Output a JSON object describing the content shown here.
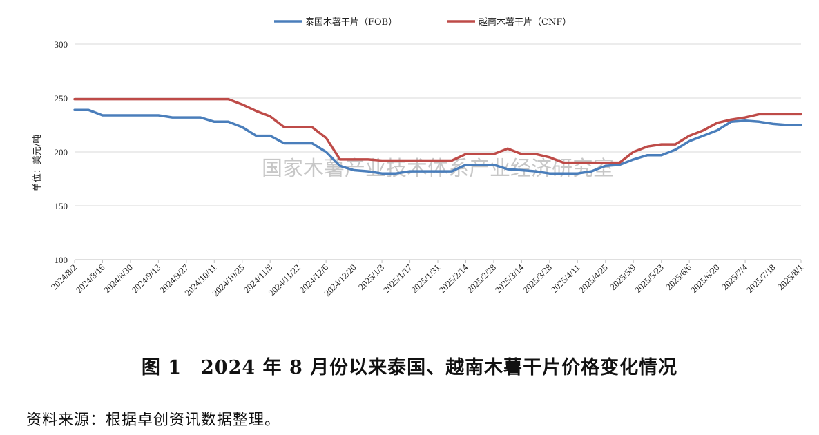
{
  "chart_data": {
    "type": "line",
    "title": "",
    "xlabel": "",
    "ylabel": "单位：美元/吨",
    "ylim": [
      100,
      300
    ],
    "yticks": [
      100,
      150,
      200,
      250,
      300
    ],
    "grid": true,
    "legend_position": "top-center",
    "watermark": "国家木薯产业技术体系产业经济研究室",
    "x_tick_labels": [
      "2024/8/2",
      "2024/8/16",
      "2024/8/30",
      "2024/9/13",
      "2024/9/27",
      "2024/10/11",
      "2024/10/25",
      "2024/11/8",
      "2024/11/22",
      "2024/12/6",
      "2024/12/20",
      "2025/1/3",
      "2025/1/17",
      "2025/1/31",
      "2025/2/14",
      "2025/2/28",
      "2025/3/14",
      "2025/3/28",
      "2025/4/11",
      "2025/4/25",
      "2025/5/9",
      "2025/5/23",
      "2025/6/6",
      "2025/6/20",
      "2025/7/4",
      "2025/7/18",
      "2025/8/1"
    ],
    "x": [
      "2024/8/2",
      "2024/8/9",
      "2024/8/16",
      "2024/8/23",
      "2024/8/30",
      "2024/9/6",
      "2024/9/13",
      "2024/9/20",
      "2024/9/27",
      "2024/10/4",
      "2024/10/11",
      "2024/10/18",
      "2024/10/25",
      "2024/11/1",
      "2024/11/8",
      "2024/11/15",
      "2024/11/22",
      "2024/11/29",
      "2024/12/6",
      "2024/12/13",
      "2024/12/20",
      "2024/12/27",
      "2025/1/3",
      "2025/1/10",
      "2025/1/17",
      "2025/1/24",
      "2025/1/31",
      "2025/2/7",
      "2025/2/14",
      "2025/2/21",
      "2025/2/28",
      "2025/3/7",
      "2025/3/14",
      "2025/3/21",
      "2025/3/28",
      "2025/4/4",
      "2025/4/11",
      "2025/4/18",
      "2025/4/25",
      "2025/5/2",
      "2025/5/9",
      "2025/5/16",
      "2025/5/23",
      "2025/5/30",
      "2025/6/6",
      "2025/6/13",
      "2025/6/20",
      "2025/6/27",
      "2025/7/4",
      "2025/7/11",
      "2025/7/18",
      "2025/7/25",
      "2025/8/1"
    ],
    "series": [
      {
        "name": "泰国木薯干片（FOB）",
        "color": "#4A7EBB",
        "values": [
          239,
          239,
          234,
          234,
          234,
          234,
          234,
          232,
          232,
          232,
          228,
          228,
          223,
          215,
          215,
          208,
          208,
          208,
          200,
          187,
          183,
          182,
          180,
          180,
          182,
          182,
          182,
          182,
          188,
          188,
          188,
          184,
          183,
          182,
          180,
          180,
          180,
          182,
          187,
          188,
          193,
          197,
          197,
          202,
          210,
          215,
          220,
          228,
          229,
          228,
          226,
          225,
          225
        ]
      },
      {
        "name": "越南木薯干片（CNF）",
        "color": "#BE4B48",
        "values": [
          249,
          249,
          249,
          249,
          249,
          249,
          249,
          249,
          249,
          249,
          249,
          249,
          244,
          238,
          233,
          223,
          223,
          223,
          213,
          193,
          193,
          193,
          192,
          192,
          192,
          192,
          192,
          192,
          198,
          198,
          198,
          203,
          198,
          198,
          195,
          190,
          190,
          190,
          190,
          190,
          200,
          205,
          207,
          207,
          215,
          220,
          227,
          230,
          232,
          235,
          235,
          235,
          235
        ]
      }
    ]
  },
  "caption": "图 1　2024 年 8 月份以来泰国、越南木薯干片价格变化情况",
  "source": "资料来源：根据卓创资讯数据整理。"
}
